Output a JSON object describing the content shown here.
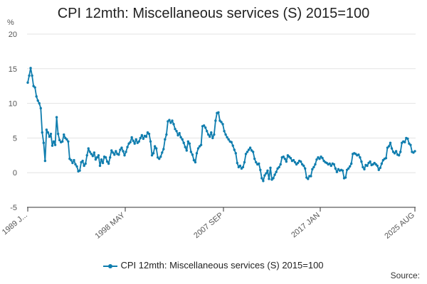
{
  "chart_data": {
    "type": "line",
    "title": "CPI 12mth: Miscellaneous services (S) 2015=100",
    "ylabel": "%",
    "xlabel": "",
    "ylim": [
      -5,
      20
    ],
    "yticks": [
      "-5",
      "0",
      "5",
      "10",
      "15",
      "20"
    ],
    "xticks": [
      "1989 J...",
      "1998 MAY",
      "2007 SEP",
      "2017 JAN",
      "2025 AUG"
    ],
    "grid": true,
    "legend_position": "bottom",
    "series": [
      {
        "name": "CPI 12mth: Miscellaneous services (S) 2015=100",
        "color": "#0f7dae",
        "values": [
          13.0,
          14.0,
          15.1,
          14.0,
          12.5,
          12.3,
          11.0,
          10.4,
          10.0,
          9.3,
          5.8,
          4.3,
          1.7,
          6.2,
          5.8,
          5.2,
          5.6,
          3.9,
          4.5,
          4.0,
          8.0,
          5.6,
          4.7,
          4.4,
          4.5,
          5.5,
          5.0,
          4.8,
          4.5,
          2.0,
          1.8,
          1.4,
          1.8,
          1.2,
          0.9,
          0.2,
          0.3,
          1.5,
          1.7,
          1.0,
          1.3,
          2.5,
          3.5,
          3.0,
          2.7,
          2.4,
          2.9,
          1.9,
          2.2,
          2.5,
          1.0,
          1.9,
          1.4,
          2.3,
          2.2,
          1.6,
          1.3,
          2.2,
          3.2,
          2.9,
          2.6,
          3.1,
          2.7,
          2.6,
          3.3,
          3.6,
          3.1,
          2.5,
          3.0,
          3.7,
          4.2,
          4.4,
          5.1,
          4.6,
          4.2,
          4.8,
          4.3,
          4.5,
          5.0,
          5.4,
          4.9,
          5.3,
          5.2,
          5.8,
          5.6,
          4.5,
          2.5,
          2.8,
          3.8,
          3.5,
          2.2,
          2.0,
          2.3,
          2.9,
          3.4,
          4.8,
          5.5,
          7.4,
          7.6,
          7.2,
          7.5,
          7.0,
          6.3,
          6.0,
          5.4,
          5.7,
          5.1,
          4.8,
          4.3,
          3.7,
          3.2,
          4.5,
          4.2,
          3.0,
          2.6,
          1.8,
          1.5,
          2.8,
          3.5,
          3.8,
          4.0,
          6.7,
          6.8,
          6.5,
          6.0,
          5.5,
          5.2,
          5.8,
          5.0,
          5.5,
          7.5,
          8.6,
          8.7,
          7.5,
          7.3,
          7.0,
          6.0,
          5.5,
          5.1,
          4.8,
          4.5,
          4.4,
          3.9,
          3.3,
          2.8,
          1.4,
          0.8,
          1.0,
          0.6,
          0.8,
          1.5,
          2.7,
          3.0,
          3.3,
          3.6,
          3.2,
          3.0,
          2.0,
          1.5,
          1.2,
          1.3,
          0.4,
          -0.8,
          -1.2,
          -0.4,
          -0.1,
          0.3,
          -0.9,
          0.7,
          -1.0,
          -0.8,
          -0.3,
          0.1,
          0.6,
          0.8,
          1.2,
          2.2,
          2.3,
          2.0,
          1.6,
          2.5,
          2.3,
          2.1,
          1.7,
          1.8,
          1.5,
          1.2,
          1.4,
          1.7,
          1.6,
          1.2,
          1.0,
          0.6,
          -0.7,
          -0.9,
          -0.5,
          -0.5,
          0.5,
          0.8,
          1.2,
          1.9,
          2.2,
          2.0,
          2.3,
          2.1,
          1.7,
          1.5,
          1.4,
          1.2,
          1.3,
          1.0,
          1.3,
          1.2,
          0.6,
          0.1,
          0.5,
          0.3,
          0.4,
          0.3,
          -0.8,
          -0.7,
          0.4,
          0.6,
          0.9,
          1.3,
          2.7,
          2.8,
          2.7,
          2.5,
          2.6,
          2.2,
          1.6,
          0.8,
          0.5,
          1.1,
          1.0,
          1.4,
          1.6,
          1.1,
          1.2,
          1.4,
          1.2,
          1.0,
          0.4,
          0.7,
          1.3,
          1.8,
          2.0,
          2.1,
          3.6,
          3.8,
          4.3,
          3.5,
          3.0,
          2.8,
          3.1,
          2.6,
          2.5,
          3.0,
          4.3,
          4.5,
          4.4,
          5.0,
          4.9,
          4.2,
          4.0,
          3.0,
          2.9,
          3.1
        ]
      }
    ]
  },
  "legend": {
    "label": "CPI 12mth: Miscellaneous services (S) 2015=100"
  },
  "source_label": "Source:"
}
